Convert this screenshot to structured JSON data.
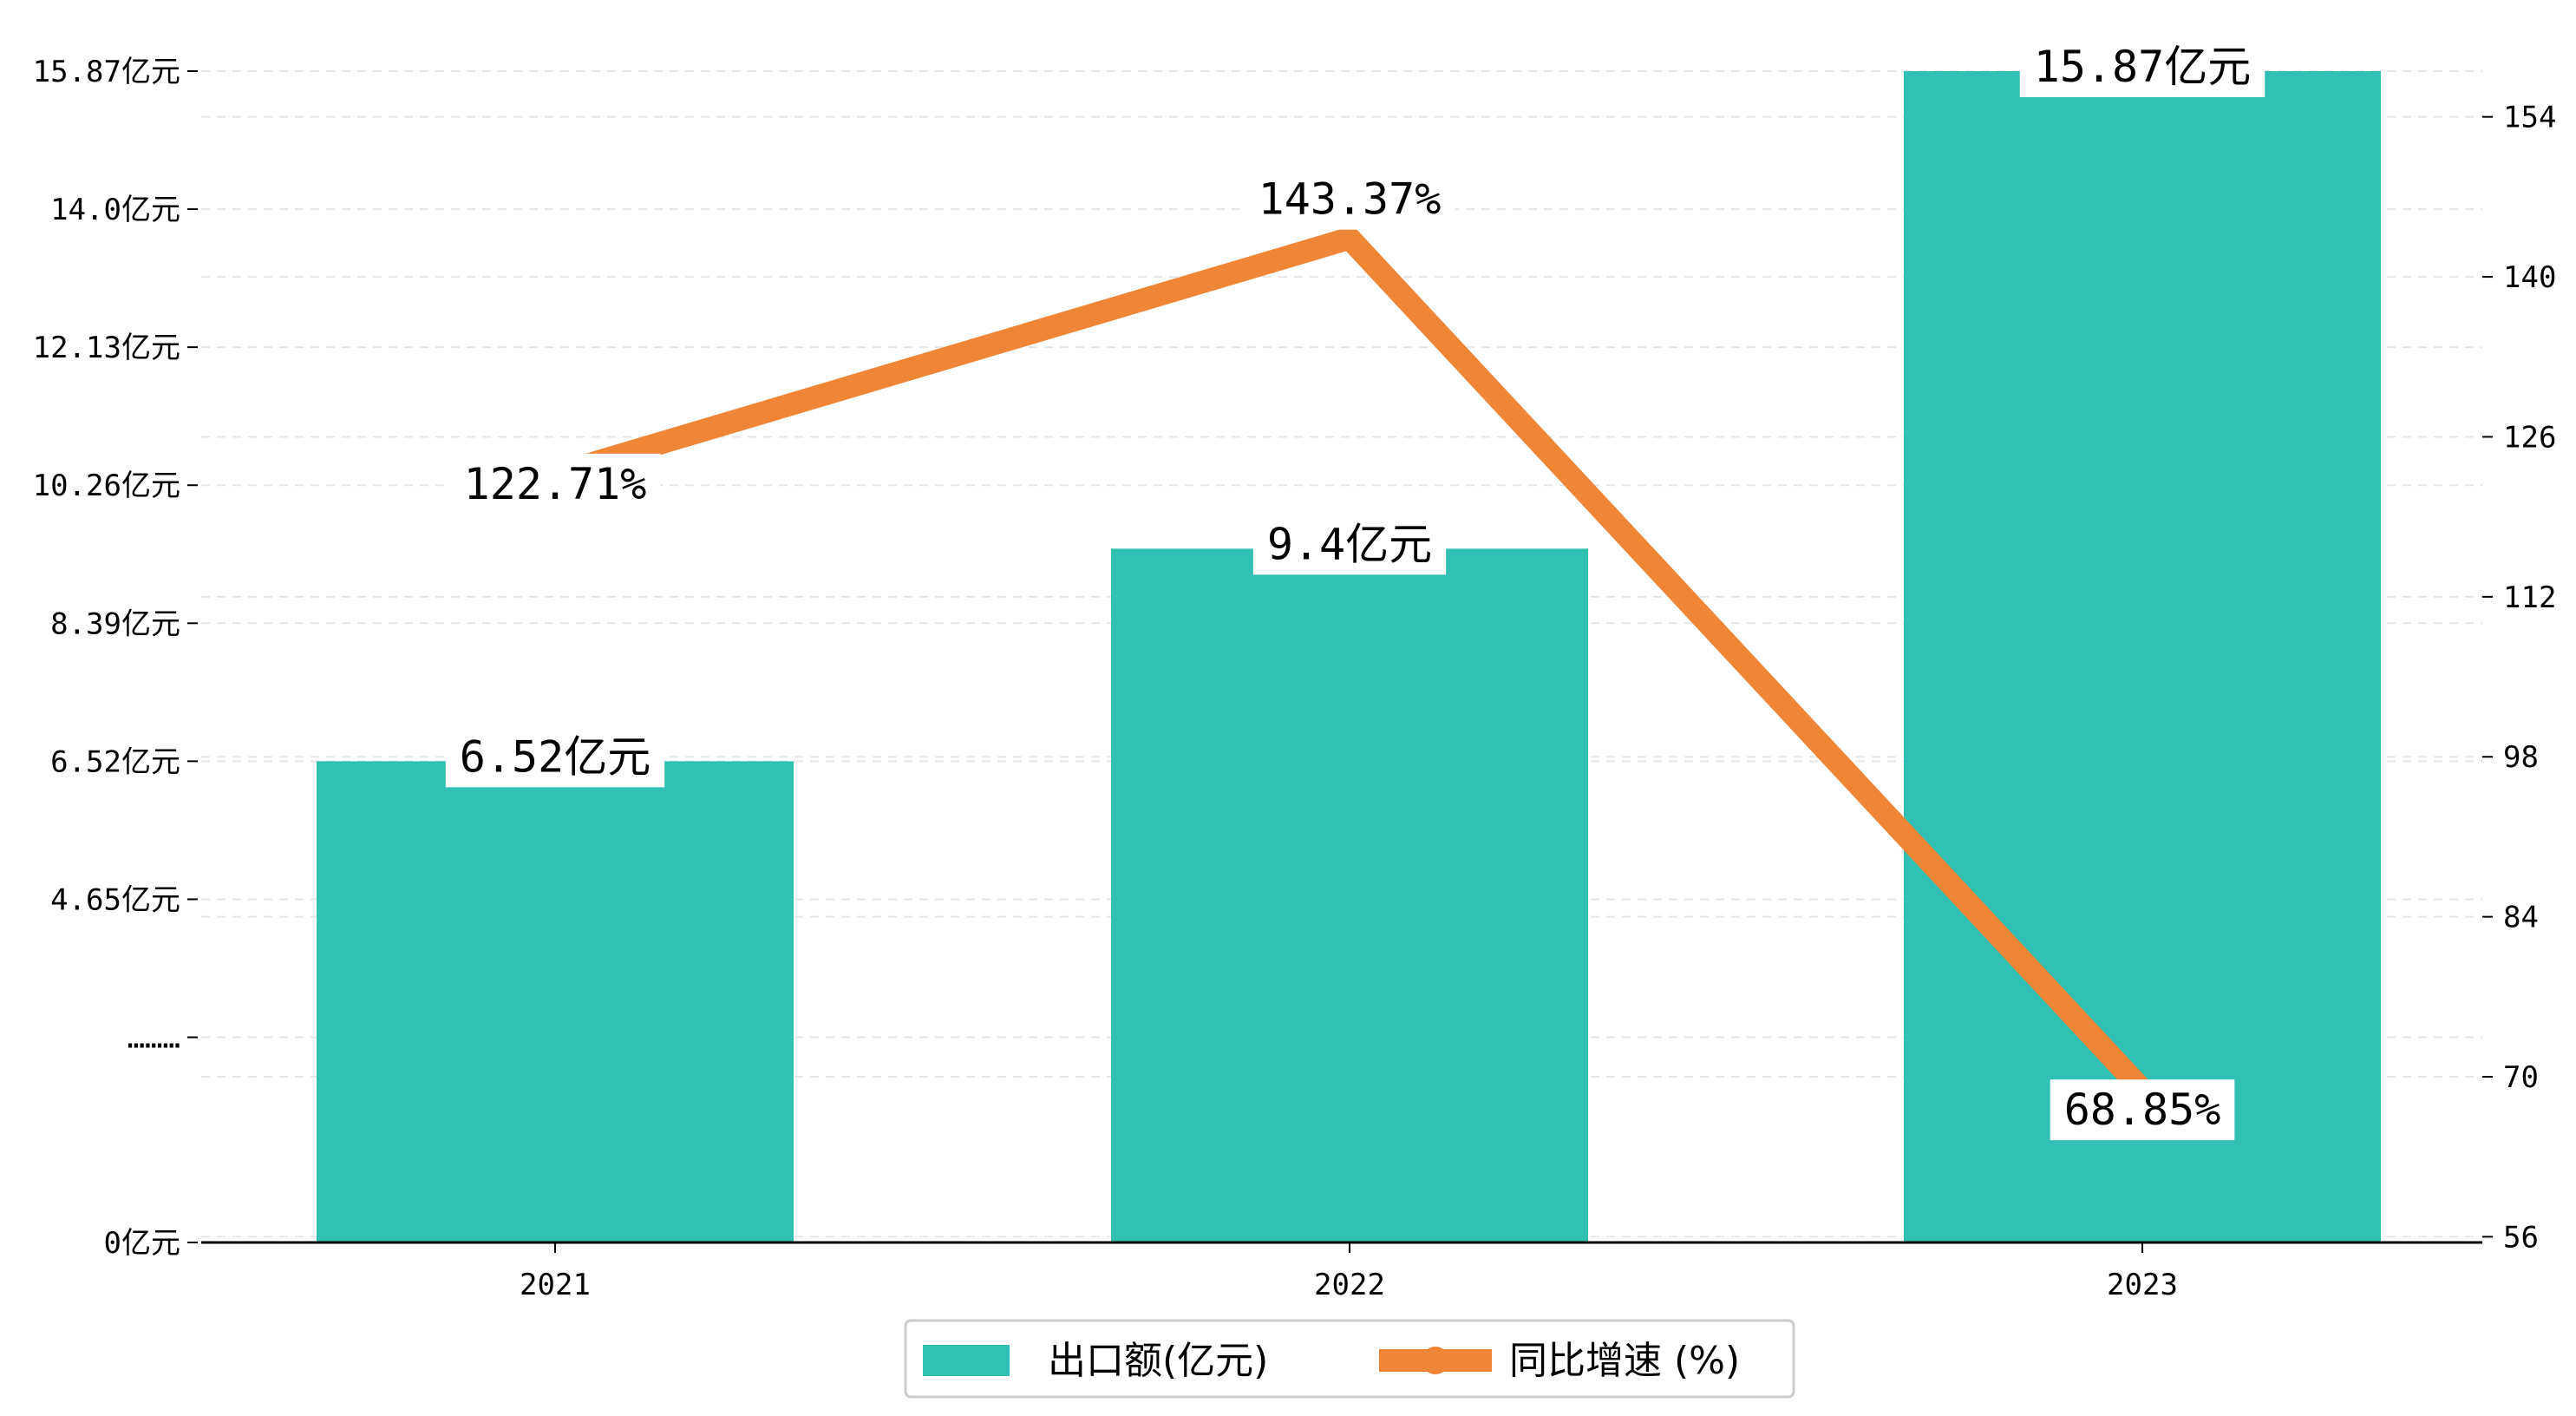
{
  "chart_data": {
    "type": "bar+line",
    "categories": [
      "2021",
      "2022",
      "2023"
    ],
    "series": [
      {
        "name": "出口额(亿元)",
        "type": "bar",
        "axis": "left",
        "values": [
          6.52,
          9.4,
          15.87
        ],
        "labels": [
          "6.52亿元",
          "9.4亿元",
          "15.87亿元"
        ],
        "color": "#30C0B4"
      },
      {
        "name": "同比增速 (%)",
        "type": "line",
        "axis": "right",
        "values": [
          122.71,
          143.37,
          68.85
        ],
        "labels": [
          "122.71%",
          "143.37%",
          "68.85%"
        ],
        "color": "#F08536"
      }
    ],
    "left_axis": {
      "ylim": [
        0,
        15.87
      ],
      "ticks": [
        {
          "value": 0,
          "label": "0亿元"
        },
        {
          "value": 2.78,
          "label": "………"
        },
        {
          "value": 4.65,
          "label": "4.65亿元"
        },
        {
          "value": 6.52,
          "label": "6.52亿元"
        },
        {
          "value": 8.39,
          "label": "8.39亿元"
        },
        {
          "value": 10.26,
          "label": "10.26亿元"
        },
        {
          "value": 12.13,
          "label": "12.13亿元"
        },
        {
          "value": 14.0,
          "label": "14.0亿元"
        },
        {
          "value": 15.87,
          "label": "15.87亿元"
        }
      ]
    },
    "right_axis": {
      "ylim": [
        55.5,
        158
      ],
      "ticks": [
        56,
        70,
        84,
        98,
        112,
        126,
        140,
        154
      ]
    },
    "grid": "horizontal dashed",
    "legend": {
      "placement": "bottom-center",
      "items": [
        {
          "label": "出口额(亿元)",
          "marker": "bar",
          "color": "#30C0B4"
        },
        {
          "label": "同比增速 (%)",
          "marker": "line",
          "color": "#F08536"
        }
      ]
    }
  }
}
